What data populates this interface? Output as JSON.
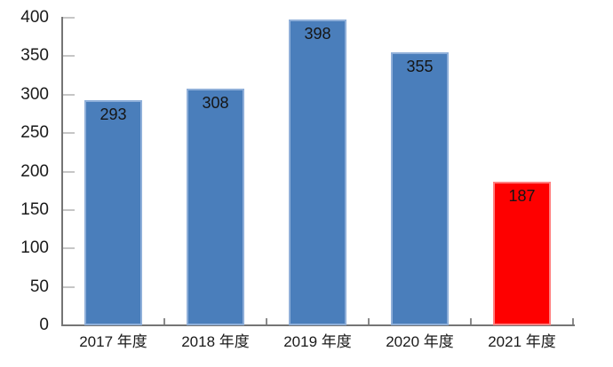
{
  "chart_data": {
    "type": "bar",
    "title": "",
    "xlabel": "",
    "ylabel": "",
    "categories": [
      "2017 年度",
      "2018 年度",
      "2019 年度",
      "2020 年度",
      "2021 年度"
    ],
    "values": [
      293,
      308,
      398,
      355,
      187
    ],
    "data_labels": [
      "293",
      "308",
      "398",
      "355",
      "187"
    ],
    "ylim": [
      0,
      400
    ],
    "ytick_step": 50,
    "ytick_labels": [
      "0",
      "50",
      "100",
      "150",
      "200",
      "250",
      "300",
      "350",
      "400"
    ],
    "grid": false,
    "legend": false,
    "highlight_index": 4,
    "bar_fill_colors": [
      "#4a7ebb",
      "#4a7ebb",
      "#4a7ebb",
      "#4a7ebb",
      "#fe0000"
    ],
    "bar_border_colors": [
      "#8fafd9",
      "#8fafd9",
      "#8fafd9",
      "#8fafd9",
      "#ff8080"
    ]
  },
  "colors": {
    "bar_blue": "#4a7ebb",
    "bar_blue_border": "#8fafd9",
    "bar_red": "#fe0000",
    "bar_red_border": "#ff8080",
    "axis_line": "#757575",
    "y_tick": "#c6c6c6",
    "x_tick": "#8a8a8a",
    "label_text": "#1a1a1a",
    "background": "#ffffff"
  }
}
